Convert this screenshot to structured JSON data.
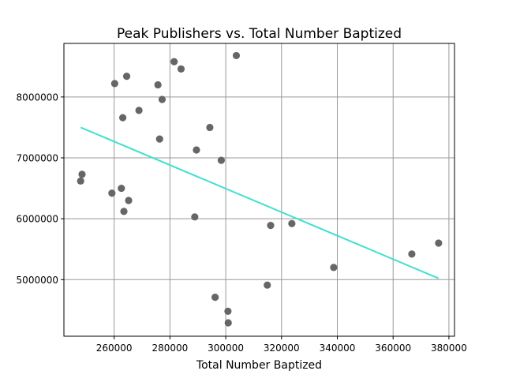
{
  "chart_data": {
    "type": "scatter",
    "title": "Peak Publishers vs. Total Number Baptized",
    "xlabel": "Total Number Baptized",
    "ylabel": "",
    "xlim": [
      242000,
      382000
    ],
    "ylim": [
      4070000,
      8880000
    ],
    "xticks": [
      260000,
      280000,
      300000,
      320000,
      340000,
      360000,
      380000
    ],
    "yticks": [
      5000000,
      6000000,
      7000000,
      8000000
    ],
    "grid": true,
    "point_color": "#666666",
    "trend_color": "#40e0d0",
    "points": [
      {
        "x": 248000,
        "y": 6620000
      },
      {
        "x": 248500,
        "y": 6730000
      },
      {
        "x": 259200,
        "y": 6420000
      },
      {
        "x": 260200,
        "y": 8220000
      },
      {
        "x": 262600,
        "y": 6500000
      },
      {
        "x": 263100,
        "y": 7660000
      },
      {
        "x": 263500,
        "y": 6120000
      },
      {
        "x": 264500,
        "y": 8340000
      },
      {
        "x": 265200,
        "y": 6300000
      },
      {
        "x": 268900,
        "y": 7780000
      },
      {
        "x": 275700,
        "y": 8200000
      },
      {
        "x": 276300,
        "y": 7310000
      },
      {
        "x": 277200,
        "y": 7960000
      },
      {
        "x": 281500,
        "y": 8580000
      },
      {
        "x": 284000,
        "y": 8460000
      },
      {
        "x": 288900,
        "y": 6030000
      },
      {
        "x": 289500,
        "y": 7130000
      },
      {
        "x": 294300,
        "y": 7500000
      },
      {
        "x": 296200,
        "y": 4710000
      },
      {
        "x": 298400,
        "y": 6960000
      },
      {
        "x": 300800,
        "y": 4480000
      },
      {
        "x": 300900,
        "y": 4290000
      },
      {
        "x": 303800,
        "y": 8680000
      },
      {
        "x": 314900,
        "y": 4910000
      },
      {
        "x": 316100,
        "y": 5890000
      },
      {
        "x": 323700,
        "y": 5920000
      },
      {
        "x": 338700,
        "y": 5200000
      },
      {
        "x": 366700,
        "y": 5420000
      },
      {
        "x": 376300,
        "y": 5600000
      }
    ],
    "trendline": {
      "x": [
        248000,
        376300
      ],
      "y": [
        7500000,
        5020000
      ]
    }
  }
}
